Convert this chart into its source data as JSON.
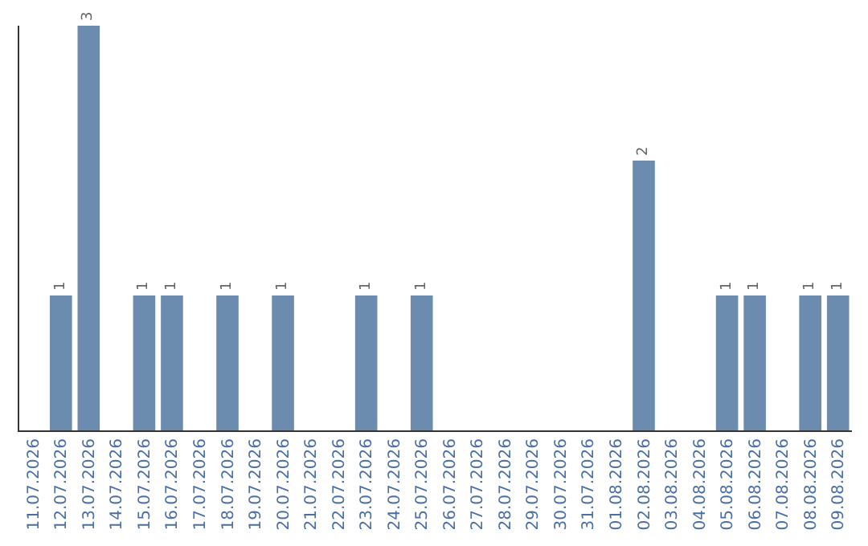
{
  "chart_data": {
    "type": "bar",
    "categories": [
      "11.07.2026",
      "12.07.2026",
      "13.07.2026",
      "14.07.2026",
      "15.07.2026",
      "16.07.2026",
      "17.07.2026",
      "18.07.2026",
      "19.07.2026",
      "20.07.2026",
      "21.07.2026",
      "22.07.2026",
      "23.07.2026",
      "24.07.2026",
      "25.07.2026",
      "26.07.2026",
      "27.07.2026",
      "28.07.2026",
      "29.07.2026",
      "30.07.2026",
      "31.07.2026",
      "01.08.2026",
      "02.08.2026",
      "03.08.2026",
      "04.08.2026",
      "05.08.2026",
      "06.08.2026",
      "07.08.2026",
      "08.08.2026",
      "09.08.2026"
    ],
    "values": [
      0,
      1,
      3,
      0,
      1,
      1,
      0,
      1,
      0,
      1,
      0,
      0,
      1,
      0,
      1,
      0,
      0,
      0,
      0,
      0,
      0,
      0,
      2,
      0,
      0,
      1,
      1,
      0,
      1,
      1
    ],
    "value_labels": [
      null,
      "1",
      "3",
      null,
      "1",
      "1",
      null,
      "1",
      null,
      "1",
      null,
      null,
      "1",
      null,
      "1",
      null,
      null,
      null,
      null,
      null,
      null,
      null,
      "2",
      null,
      null,
      "1",
      "1",
      null,
      "1",
      "1"
    ],
    "color": "#6b8cae",
    "tick_labels": "x"
  }
}
